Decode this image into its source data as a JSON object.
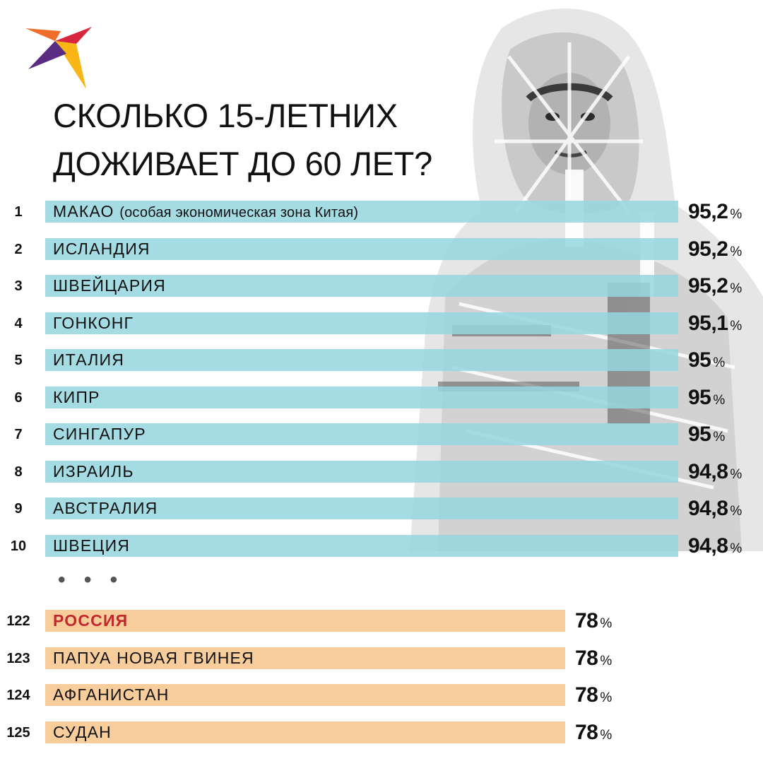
{
  "title_lines": [
    "СКОЛЬКО 15-ЛЕТНИХ",
    "ДОЖИВАЕТ ДО 60 ЛЕТ?"
  ],
  "ellipsis": "• • •",
  "percent_sign": "%",
  "colors": {
    "top_bar": "#96d6de",
    "bottom_bar": "#f6c994",
    "highlight_text": "#c1272d",
    "logo_orange": "#f06e2a",
    "logo_yellow": "#f8b617",
    "logo_red": "#d7263d",
    "logo_purple": "#5a2d82"
  },
  "icons": [
    "bird-logo-icon",
    "hooded-teen-photo"
  ],
  "chart_data": {
    "type": "bar",
    "orientation": "horizontal",
    "unit": "%",
    "title": "СКОЛЬКО 15-ЛЕТНИХ ДОЖИВАЕТ ДО 60 ЛЕТ?",
    "top": [
      {
        "rank": "1",
        "country": "МАКАО",
        "note": "(особая экономическая зона Китая)",
        "value": 95.2,
        "label": "95,2"
      },
      {
        "rank": "2",
        "country": "ИСЛАНДИЯ",
        "note": "",
        "value": 95.2,
        "label": "95,2"
      },
      {
        "rank": "3",
        "country": "ШВЕЙЦАРИЯ",
        "note": "",
        "value": 95.2,
        "label": "95,2"
      },
      {
        "rank": "4",
        "country": "ГОНКОНГ",
        "note": "",
        "value": 95.1,
        "label": "95,1"
      },
      {
        "rank": "5",
        "country": "ИТАЛИЯ",
        "note": "",
        "value": 95,
        "label": "95"
      },
      {
        "rank": "6",
        "country": "КИПР",
        "note": "",
        "value": 95,
        "label": "95"
      },
      {
        "rank": "7",
        "country": "СИНГАПУР",
        "note": "",
        "value": 95,
        "label": "95"
      },
      {
        "rank": "8",
        "country": "ИЗРАИЛЬ",
        "note": "",
        "value": 94.8,
        "label": "94,8"
      },
      {
        "rank": "9",
        "country": "АВСТРАЛИЯ",
        "note": "",
        "value": 94.8,
        "label": "94,8"
      },
      {
        "rank": "10",
        "country": "ШВЕЦИЯ",
        "note": "",
        "value": 94.8,
        "label": "94,8"
      }
    ],
    "bottom": [
      {
        "rank": "122",
        "country": "РОССИЯ",
        "note": "",
        "value": 78,
        "label": "78",
        "highlight": true
      },
      {
        "rank": "123",
        "country": "ПАПУА НОВАЯ ГВИНЕЯ",
        "note": "",
        "value": 78,
        "label": "78"
      },
      {
        "rank": "124",
        "country": "АФГАНИСТАН",
        "note": "",
        "value": 78,
        "label": "78"
      },
      {
        "rank": "125",
        "country": "СУДАН",
        "note": "",
        "value": 78,
        "label": "78"
      }
    ]
  }
}
